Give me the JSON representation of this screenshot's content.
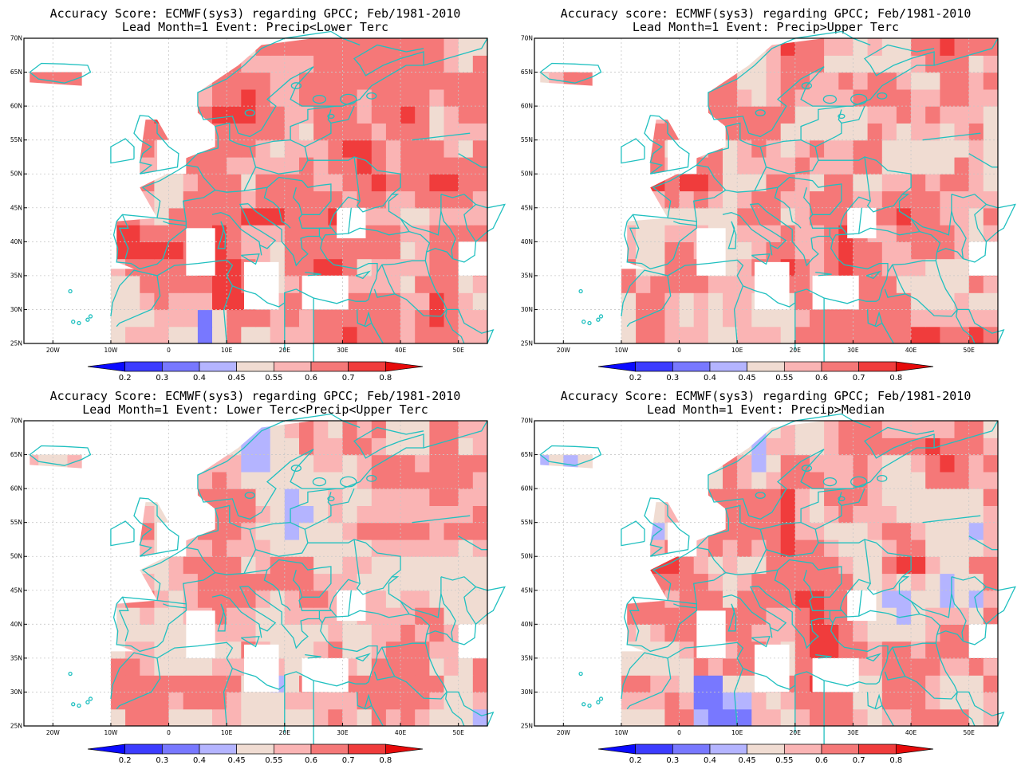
{
  "panels": [
    {
      "title_line1": "Accuracy Score: ECMWF(sys3) regarding GPCC; Feb/1981-2010",
      "title_line2": "Lead Month=1 Event: Precip<Lower Terc"
    },
    {
      "title_line1": "Accuracy score: ECMWF(sys3) regarding GPCC; Feb/1981-2010",
      "title_line2": "Lead Month=1 Event: Precip>Upper Terc"
    },
    {
      "title_line1": "Accuracy Score: ECMWF(sys3) regarding GPCC; Feb/1981-2010",
      "title_line2": "Lead Month=1 Event: Lower Terc<Precip<Upper Terc"
    },
    {
      "title_line1": "Accuracy Score: ECMWF(sys3) regarding GPCC; Feb/1981-2010",
      "title_line2": "Lead Month=1 Event: Precip>Median"
    }
  ],
  "map": {
    "lat_ticks": [
      "70N",
      "65N",
      "60N",
      "55N",
      "50N",
      "45N",
      "40N",
      "35N",
      "30N",
      "25N"
    ],
    "lon_ticks": [
      "20W",
      "10W",
      "0",
      "10E",
      "20E",
      "30E",
      "40E",
      "50E"
    ],
    "lon_range": [
      -25,
      55
    ],
    "lat_range": [
      25,
      70
    ],
    "coastline_color": "#20c0c0",
    "grid_color": "#c8c8c8"
  },
  "colorbar": {
    "labels": [
      "0.2",
      "0.3",
      "0.4",
      "0.45",
      "0.55",
      "0.6",
      "0.7",
      "0.8"
    ],
    "colors": [
      "#0a0aff",
      "#3c3cff",
      "#7878ff",
      "#b4b4ff",
      "#f0dcd2",
      "#fab4b4",
      "#f57878",
      "#f03c3c",
      "#e60a0a"
    ]
  }
}
